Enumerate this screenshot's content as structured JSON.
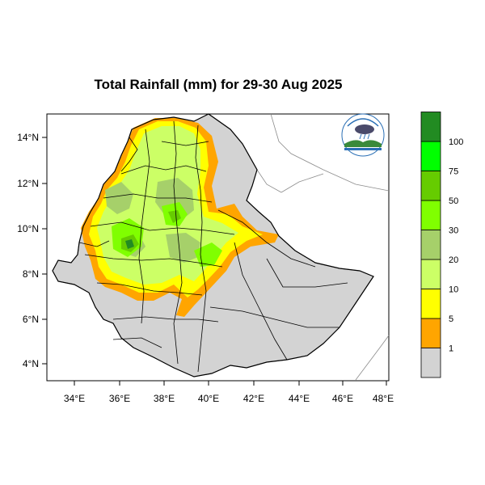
{
  "title": "Total Rainfall (mm) for 29-30 Aug 2025",
  "lon_ticks": [
    "34°E",
    "36°E",
    "38°E",
    "40°E",
    "42°E",
    "44°E",
    "46°E",
    "48°E"
  ],
  "lat_ticks": [
    "14°N",
    "12°N",
    "10°N",
    "8°N",
    "6°N",
    "4°N"
  ],
  "legend": {
    "labels": [
      "1",
      "5",
      "10",
      "20",
      "30",
      "50",
      "75",
      "100"
    ],
    "colors": [
      "#d3d3d3",
      "#ffa500",
      "#ffff00",
      "#ccff66",
      "#a6d06a",
      "#80ff00",
      "#66cc00",
      "#00ff00",
      "#228b22"
    ]
  },
  "colors": {
    "background": "#ffffff",
    "land_none": "#d3d3d3",
    "border": "#000000"
  }
}
